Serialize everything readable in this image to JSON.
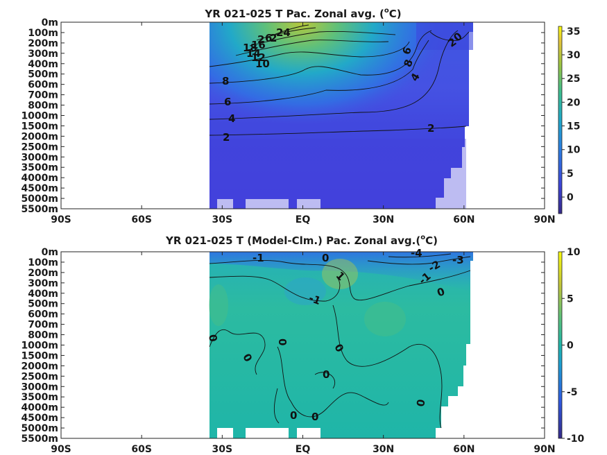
{
  "chart_data": [
    {
      "type": "heatmap",
      "title": "YR 021-025 T Pac. Zonal avg. (",
      "title_sup": "o",
      "title_tail": "C)",
      "x_ticks": [
        "90S",
        "60S",
        "30S",
        "EQ",
        "30N",
        "60N",
        "90N"
      ],
      "x_values": [
        -90,
        -60,
        -30,
        0,
        30,
        60,
        90
      ],
      "y_ticks": [
        "0m",
        "100m",
        "200m",
        "300m",
        "400m",
        "500m",
        "600m",
        "700m",
        "800m",
        "1000m",
        "1500m",
        "2000m",
        "2500m",
        "3000m",
        "3500m",
        "4000m",
        "4500m",
        "5000m",
        "5500m"
      ],
      "colorbar_ticks": [
        "35",
        "30",
        "25",
        "20",
        "15",
        "10",
        "5",
        "0"
      ],
      "colorbar_values": [
        35,
        30,
        25,
        20,
        15,
        10,
        5,
        0
      ],
      "colorbar_range": [
        -3.5,
        36
      ],
      "data_lon_range": [
        -35,
        62
      ],
      "contour_labels": [
        "24",
        "2",
        "2",
        "6",
        "18",
        "16",
        "14",
        "12",
        "10",
        "8",
        "6",
        "4",
        "2",
        "2",
        "2",
        "0",
        "6",
        "8",
        "4"
      ]
    },
    {
      "type": "heatmap",
      "title": "YR 021-025 T (Model-Clm.) Pac. Zonal avg.(",
      "title_sup": "o",
      "title_tail": "C)",
      "x_ticks": [
        "90S",
        "60S",
        "30S",
        "EQ",
        "30N",
        "60N",
        "90N"
      ],
      "x_values": [
        -90,
        -60,
        -30,
        0,
        30,
        60,
        90
      ],
      "y_ticks": [
        "0m",
        "100m",
        "200m",
        "300m",
        "400m",
        "500m",
        "600m",
        "700m",
        "800m",
        "1000m",
        "1500m",
        "2000m",
        "2500m",
        "3000m",
        "3500m",
        "4000m",
        "4500m",
        "5000m",
        "5500m"
      ],
      "colorbar_ticks": [
        "10",
        "5",
        "0",
        "-5",
        "-10"
      ],
      "colorbar_values": [
        10,
        5,
        0,
        -5,
        -10
      ],
      "colorbar_range": [
        -10,
        10
      ],
      "data_lon_range": [
        -35,
        62
      ],
      "contour_labels": [
        "-1",
        "0",
        "-4",
        "-3",
        "-2",
        "-1",
        "1",
        "-1",
        "0",
        "0",
        "0",
        "0",
        "0",
        "0",
        "0",
        "0"
      ]
    }
  ],
  "colors": {
    "viridis_low": "#3b3fc7",
    "viridis_mid": "#1fb5a8",
    "viridis_high": "#f6f02a",
    "land": "#ffffff"
  }
}
